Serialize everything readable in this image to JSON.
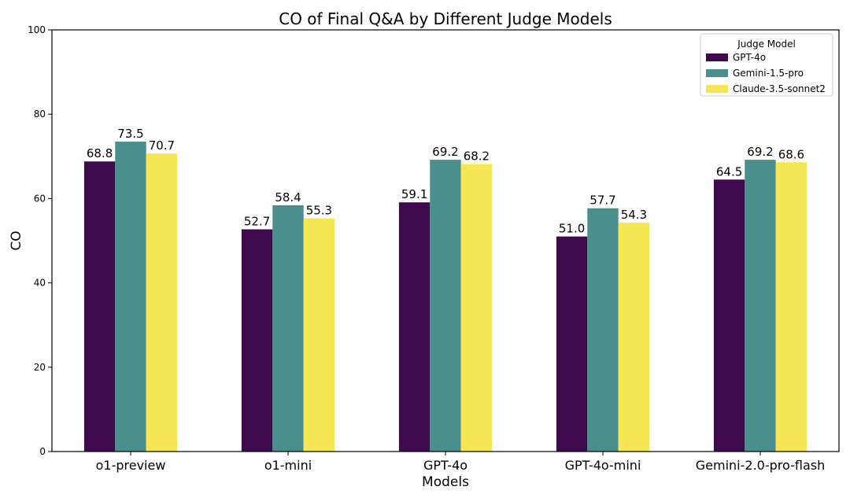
{
  "chart_data": {
    "type": "bar",
    "title": "CO of Final Q&A by Different Judge Models",
    "xlabel": "Models",
    "ylabel": "CO",
    "ylim": [
      0,
      100
    ],
    "yticks": [
      0,
      20,
      40,
      60,
      80,
      100
    ],
    "categories": [
      "o1-preview",
      "o1-mini",
      "GPT-4o",
      "GPT-4o-mini",
      "Gemini-2.0-pro-flash"
    ],
    "legend_title": "Judge Model",
    "legend_position": "top-right",
    "grid": false,
    "series": [
      {
        "name": "GPT-4o",
        "color": "#3f0a4d",
        "values": [
          68.8,
          52.7,
          59.1,
          51.0,
          64.5
        ],
        "labels": [
          "68.8",
          "52.7",
          "59.1",
          "51.0",
          "64.5"
        ]
      },
      {
        "name": "Gemini-1.5-pro",
        "color": "#4a8f8c",
        "values": [
          73.5,
          58.4,
          69.2,
          57.7,
          69.2
        ],
        "labels": [
          "73.5",
          "58.4",
          "69.2",
          "57.7",
          "69.2"
        ]
      },
      {
        "name": "Claude-3.5-sonnet2",
        "color": "#f5e655",
        "values": [
          70.7,
          55.3,
          68.2,
          54.3,
          68.6
        ],
        "labels": [
          "70.7",
          "55.3",
          "68.2",
          "54.3",
          "68.6"
        ]
      }
    ]
  }
}
